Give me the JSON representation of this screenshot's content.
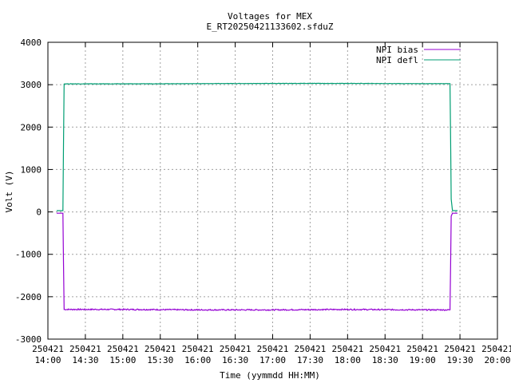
{
  "chart_data": {
    "type": "line",
    "title": "Voltages for MEX",
    "subtitle": "E_RT20250421133602.sfduZ",
    "xlabel": "Time (yymmdd HH:MM)",
    "ylabel": "Volt (V)",
    "xlim": [
      "2025-04-21 14:00",
      "2025-04-21 20:00"
    ],
    "ylim": [
      -3000,
      4000
    ],
    "grid": true,
    "legend_position": "top-right",
    "x_ticks": [
      {
        "date": "250421",
        "time": "14:00"
      },
      {
        "date": "250421",
        "time": "14:30"
      },
      {
        "date": "250421",
        "time": "15:00"
      },
      {
        "date": "250421",
        "time": "15:30"
      },
      {
        "date": "250421",
        "time": "16:00"
      },
      {
        "date": "250421",
        "time": "16:30"
      },
      {
        "date": "250421",
        "time": "17:00"
      },
      {
        "date": "250421",
        "time": "17:30"
      },
      {
        "date": "250421",
        "time": "18:00"
      },
      {
        "date": "250421",
        "time": "18:30"
      },
      {
        "date": "250421",
        "time": "19:00"
      },
      {
        "date": "250421",
        "time": "19:30"
      },
      {
        "date": "250421",
        "time": "20:00"
      }
    ],
    "y_ticks": [
      "-3000",
      "-2000",
      "-1000",
      "0",
      "1000",
      "2000",
      "3000",
      "4000"
    ],
    "series": [
      {
        "name": "NPI bias",
        "color": "#9400d3",
        "points": [
          [
            "2025-04-21 14:07",
            -30
          ],
          [
            "2025-04-21 14:12",
            -30
          ],
          [
            "2025-04-21 14:13",
            -2300
          ],
          [
            "2025-04-21 15:00",
            -2300
          ],
          [
            "2025-04-21 16:00",
            -2310
          ],
          [
            "2025-04-21 17:00",
            -2310
          ],
          [
            "2025-04-21 18:00",
            -2300
          ],
          [
            "2025-04-21 19:00",
            -2310
          ],
          [
            "2025-04-21 19:22",
            -2310
          ],
          [
            "2025-04-21 19:23",
            -100
          ],
          [
            "2025-04-21 19:24",
            -30
          ],
          [
            "2025-04-21 19:28",
            -30
          ]
        ]
      },
      {
        "name": "NPI defl",
        "color": "#009e73",
        "points": [
          [
            "2025-04-21 14:07",
            30
          ],
          [
            "2025-04-21 14:12",
            30
          ],
          [
            "2025-04-21 14:13",
            3020
          ],
          [
            "2025-04-21 15:00",
            3020
          ],
          [
            "2025-04-21 16:00",
            3025
          ],
          [
            "2025-04-21 17:00",
            3030
          ],
          [
            "2025-04-21 18:00",
            3030
          ],
          [
            "2025-04-21 19:00",
            3025
          ],
          [
            "2025-04-21 19:22",
            3025
          ],
          [
            "2025-04-21 19:23",
            300
          ],
          [
            "2025-04-21 19:24",
            30
          ],
          [
            "2025-04-21 19:28",
            30
          ]
        ]
      }
    ]
  }
}
